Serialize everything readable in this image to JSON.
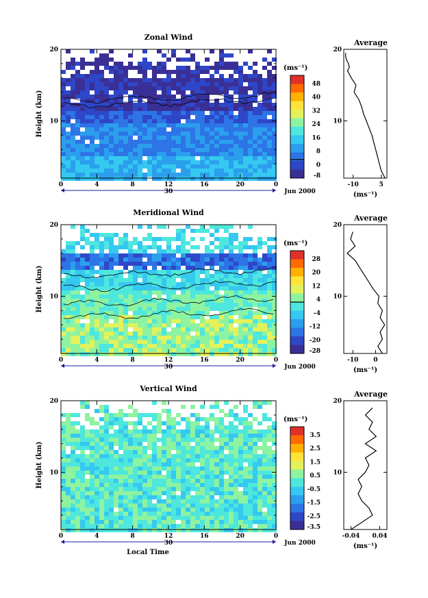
{
  "chart_data": [
    {
      "type": "heatmap",
      "title": "Zonal Wind",
      "ylabel": "Height (km)",
      "ylim": [
        2,
        20
      ],
      "y_ticks": [
        "10",
        "20"
      ],
      "xlim": [
        0,
        24
      ],
      "x_ticks": [
        "0",
        "4",
        "8",
        "12",
        "16",
        "20",
        "0"
      ],
      "date_day": "30",
      "date_label": "Jun 2000",
      "colorbar": {
        "unit": "(ms⁻¹)",
        "labels": [
          "48",
          "40",
          "32",
          "24",
          "16",
          "8",
          "0",
          "-8"
        ],
        "colors": [
          "#e0302a",
          "#ff6a00",
          "#ffb000",
          "#ffe33a",
          "#e3f25a",
          "#8ef3a0",
          "#4ee7dd",
          "#35c8f0",
          "#2b9fee",
          "#2d74e6",
          "#2e47c9",
          "#3a2f95"
        ]
      },
      "profile": {
        "title": "Average",
        "xlabel": "(ms⁻¹)",
        "x_ticks": [
          "-10",
          "5"
        ],
        "xlim": [
          -15,
          8
        ],
        "heights": [
          2.0,
          3.0,
          4.0,
          5.0,
          6.0,
          7.0,
          8.0,
          9.0,
          10.0,
          11.0,
          12.0,
          13.0,
          14.0,
          15.0,
          16.0,
          17.0,
          17.5,
          18.0,
          18.5,
          19.0,
          19.5
        ],
        "values": [
          7.0,
          5.0,
          4.0,
          3.0,
          2.0,
          1.0,
          0.0,
          -1.5,
          -3.0,
          -4.5,
          -5.5,
          -7.0,
          -9.5,
          -8.5,
          -11.0,
          -13.0,
          -12.0,
          -12.5,
          -13.5,
          -14.0,
          -14.0
        ]
      }
    },
    {
      "type": "heatmap",
      "title": "Meridional Wind",
      "ylabel": "Height (km)",
      "ylim": [
        2,
        20
      ],
      "y_ticks": [
        "10",
        "20"
      ],
      "xlim": [
        0,
        24
      ],
      "x_ticks": [
        "0",
        "4",
        "8",
        "12",
        "16",
        "20",
        "0"
      ],
      "date_day": "30",
      "date_label": "Jun 2000",
      "colorbar": {
        "unit": "(ms⁻¹)",
        "labels": [
          "28",
          "20",
          "12",
          "4",
          "-4",
          "-12",
          "-20",
          "-28"
        ],
        "colors": [
          "#e0302a",
          "#ff6a00",
          "#ffb000",
          "#ffe33a",
          "#e3f25a",
          "#8ef3a0",
          "#4ee7dd",
          "#35c8f0",
          "#2b9fee",
          "#2d74e6",
          "#2e47c9",
          "#3a2f95"
        ]
      },
      "profile": {
        "title": "Average",
        "xlabel": "(ms⁻¹)",
        "x_ticks": [
          "-10",
          "0"
        ],
        "xlim": [
          -14,
          5
        ],
        "heights": [
          2.0,
          3.0,
          4.0,
          5.0,
          6.0,
          7.0,
          8.0,
          9.0,
          10.0,
          11.0,
          12.0,
          13.0,
          14.0,
          15.0,
          16.0,
          17.0,
          18.0,
          19.0
        ],
        "values": [
          3.0,
          1.0,
          3.0,
          2.0,
          4.0,
          2.0,
          3.0,
          1.0,
          1.5,
          -1.0,
          -3.0,
          -5.0,
          -7.0,
          -9.0,
          -12.5,
          -9.0,
          -11.0,
          -10.0
        ]
      }
    },
    {
      "type": "heatmap",
      "title": "Vertical Wind",
      "ylabel": "Height (km)",
      "ylim": [
        2,
        20
      ],
      "y_ticks": [
        "10",
        "20"
      ],
      "xlim": [
        0,
        24
      ],
      "x_ticks": [
        "0",
        "4",
        "8",
        "12",
        "16",
        "20",
        "0"
      ],
      "date_day": "30",
      "date_label": "Jun 2000",
      "xlabel": "Local Time",
      "colorbar": {
        "unit": "(ms⁻¹)",
        "labels": [
          "3.5",
          "2.5",
          "1.5",
          "0.5",
          "-0.5",
          "-1.5",
          "-2.5",
          "-3.5"
        ],
        "colors": [
          "#e0302a",
          "#ff6a00",
          "#ffb000",
          "#ffe33a",
          "#e3f25a",
          "#8ef3a0",
          "#4ee7dd",
          "#35c8f0",
          "#2b9fee",
          "#2d74e6",
          "#2e47c9",
          "#3a2f95"
        ]
      },
      "profile": {
        "title": "Average",
        "xlabel": "(ms⁻¹)",
        "x_ticks": [
          "-0.04",
          "0.04"
        ],
        "xlim": [
          -0.06,
          0.06
        ],
        "heights": [
          2.0,
          3.0,
          4.0,
          5.0,
          6.0,
          7.0,
          8.0,
          9.0,
          10.0,
          11.0,
          12.0,
          13.0,
          14.0,
          15.0,
          16.0,
          17.0,
          18.0,
          19.0
        ],
        "values": [
          -0.04,
          -0.01,
          0.02,
          0.01,
          -0.01,
          -0.02,
          -0.01,
          -0.02,
          0.0,
          0.01,
          0.0,
          0.03,
          0.0,
          0.03,
          0.01,
          0.02,
          0.0,
          0.02
        ]
      }
    }
  ]
}
